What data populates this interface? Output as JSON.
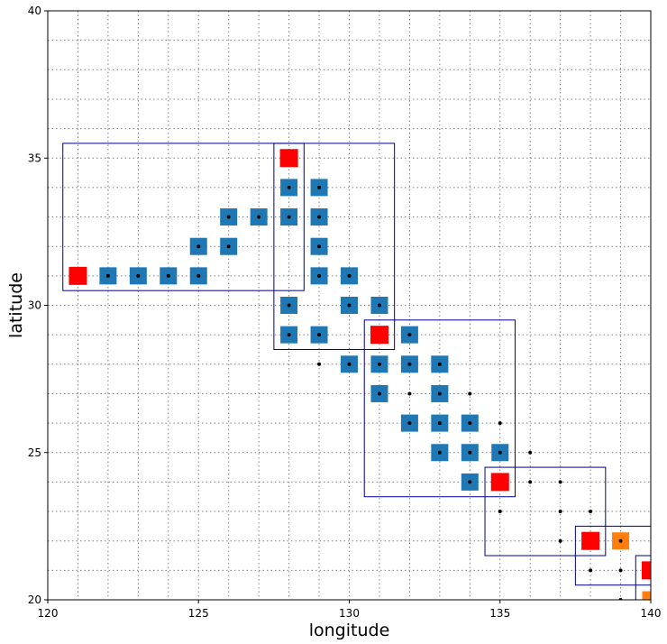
{
  "chart_data": {
    "type": "scatter",
    "xlabel": "longitude",
    "ylabel": "latitude",
    "xlim": [
      120,
      140
    ],
    "ylim": [
      20,
      40
    ],
    "x_ticks": [
      120,
      125,
      130,
      135,
      140
    ],
    "y_ticks": [
      20,
      25,
      30,
      35,
      40
    ],
    "x_tick_labels": [
      "120",
      "125",
      "130",
      "135",
      "140"
    ],
    "y_tick_labels": [
      "20",
      "25",
      "30",
      "35",
      "40"
    ],
    "grid": "dotted, 1 degree spacing",
    "colors": {
      "blue_marker": "#1f77b4",
      "red_marker": "#ff0000",
      "orange_marker": "#ff7f0e",
      "box_outline": "#00008b",
      "grid_line": "#808080",
      "dot": "#000000"
    },
    "series": [
      {
        "marker": "blue-square",
        "points": [
          [
            122,
            31
          ],
          [
            123,
            31
          ],
          [
            124,
            31
          ],
          [
            125,
            31
          ],
          [
            125,
            32
          ],
          [
            126,
            32
          ],
          [
            126,
            33
          ],
          [
            127,
            33
          ],
          [
            128,
            34
          ],
          [
            128,
            33
          ],
          [
            128,
            30
          ],
          [
            128,
            29
          ],
          [
            129,
            34
          ],
          [
            129,
            33
          ],
          [
            129,
            32
          ],
          [
            129,
            31
          ],
          [
            129,
            29
          ],
          [
            130,
            31
          ],
          [
            130,
            30
          ],
          [
            130,
            28
          ],
          [
            131,
            30
          ],
          [
            131,
            28
          ],
          [
            131,
            27
          ],
          [
            132,
            29
          ],
          [
            132,
            28
          ],
          [
            132,
            26
          ],
          [
            133,
            28
          ],
          [
            133,
            27
          ],
          [
            133,
            26
          ],
          [
            133,
            25
          ],
          [
            134,
            26
          ],
          [
            134,
            25
          ],
          [
            134,
            24
          ],
          [
            135,
            25
          ]
        ]
      },
      {
        "marker": "red-square",
        "points": [
          [
            121,
            31
          ],
          [
            128,
            35
          ],
          [
            131,
            29
          ],
          [
            135,
            24
          ],
          [
            138,
            22
          ],
          [
            140,
            21
          ]
        ]
      },
      {
        "marker": "orange-square",
        "points": [
          [
            139,
            22
          ],
          [
            140,
            20
          ]
        ]
      },
      {
        "marker": "black-dot",
        "points": [
          [
            122,
            31
          ],
          [
            123,
            31
          ],
          [
            124,
            31
          ],
          [
            125,
            31
          ],
          [
            125,
            32
          ],
          [
            126,
            32
          ],
          [
            126,
            33
          ],
          [
            127,
            33
          ],
          [
            128,
            34
          ],
          [
            128,
            33
          ],
          [
            128,
            30
          ],
          [
            128,
            29
          ],
          [
            129,
            34
          ],
          [
            129,
            33
          ],
          [
            129,
            32
          ],
          [
            129,
            31
          ],
          [
            129,
            29
          ],
          [
            129,
            28
          ],
          [
            130,
            31
          ],
          [
            130,
            30
          ],
          [
            130,
            28
          ],
          [
            131,
            30
          ],
          [
            131,
            28
          ],
          [
            131,
            27
          ],
          [
            132,
            29
          ],
          [
            132,
            28
          ],
          [
            132,
            27
          ],
          [
            132,
            26
          ],
          [
            133,
            28
          ],
          [
            133,
            27
          ],
          [
            133,
            26
          ],
          [
            133,
            25
          ],
          [
            134,
            27
          ],
          [
            134,
            26
          ],
          [
            134,
            25
          ],
          [
            134,
            24
          ],
          [
            135,
            26
          ],
          [
            135,
            25
          ],
          [
            135,
            23
          ],
          [
            136,
            25
          ],
          [
            136,
            24
          ],
          [
            137,
            24
          ],
          [
            137,
            23
          ],
          [
            137,
            22
          ],
          [
            138,
            23
          ],
          [
            138,
            21
          ],
          [
            139,
            22
          ],
          [
            139,
            21
          ],
          [
            139,
            20
          ]
        ]
      }
    ],
    "boxes": [
      {
        "x": [
          120.5,
          128.5
        ],
        "y": [
          30.5,
          35.5
        ]
      },
      {
        "x": [
          127.5,
          131.5
        ],
        "y": [
          28.5,
          35.5
        ]
      },
      {
        "x": [
          130.5,
          135.5
        ],
        "y": [
          23.5,
          29.5
        ]
      },
      {
        "x": [
          134.5,
          138.5
        ],
        "y": [
          21.5,
          24.5
        ]
      },
      {
        "x": [
          137.5,
          140.5
        ],
        "y": [
          20.5,
          22.5
        ]
      },
      {
        "x": [
          139.5,
          140.5
        ],
        "y": [
          19.5,
          21.5
        ]
      }
    ]
  }
}
